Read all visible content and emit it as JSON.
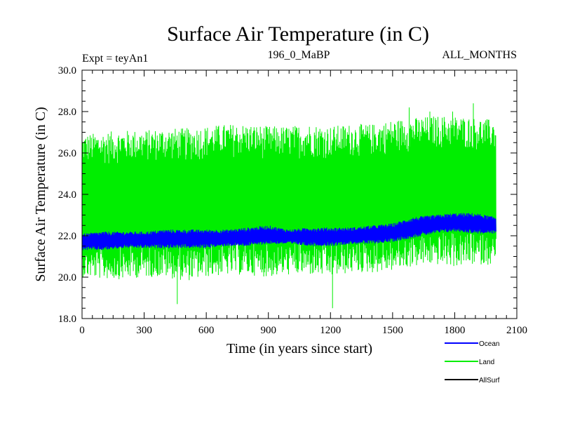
{
  "chart_data": {
    "type": "line",
    "title": "Surface Air Temperature (in C)",
    "subtitle_left": "Expt = teyAn1",
    "subtitle_center": "196_0_MaBP",
    "subtitle_right": "ALL_MONTHS",
    "xlabel": "Time (in years since start)",
    "ylabel": "Surface Air Temperature (in C)",
    "xlim": [
      0,
      2100
    ],
    "ylim": [
      18.0,
      30.0
    ],
    "xticks": [
      0,
      300,
      600,
      900,
      1200,
      1500,
      1800,
      2100
    ],
    "yticks": [
      18.0,
      20.0,
      22.0,
      24.0,
      26.0,
      28.0,
      30.0
    ],
    "xtick_labels": [
      "0",
      "300",
      "600",
      "900",
      "1200",
      "1500",
      "1800",
      "2100"
    ],
    "ytick_labels": [
      "18.0",
      "20.0",
      "22.0",
      "24.0",
      "26.0",
      "28.0",
      "30.0"
    ],
    "legend_position": "below-right",
    "series": [
      {
        "name": "Land",
        "color": "#00ee00",
        "x": [
          0,
          100,
          200,
          300,
          400,
          500,
          600,
          700,
          800,
          900,
          1000,
          1100,
          1200,
          1300,
          1400,
          1500,
          1600,
          1700,
          1800,
          1900,
          2000
        ],
        "upper": [
          26.9,
          27.0,
          27.1,
          27.1,
          27.2,
          27.2,
          27.3,
          27.4,
          27.4,
          27.3,
          27.3,
          27.4,
          27.3,
          27.4,
          27.4,
          27.6,
          27.7,
          27.8,
          27.8,
          27.7,
          27.6
        ],
        "lower": [
          20.0,
          19.9,
          19.9,
          20.0,
          20.0,
          19.8,
          20.0,
          20.1,
          20.1,
          20.0,
          20.1,
          20.1,
          20.0,
          20.2,
          20.2,
          20.3,
          20.5,
          20.6,
          20.5,
          20.6,
          20.6
        ],
        "spikes": [
          [
            1210,
            18.5
          ],
          [
            460,
            18.7
          ],
          [
            1890,
            28.4
          ],
          [
            1580,
            28.2
          ],
          [
            1680,
            28.0
          ],
          [
            1790,
            28.0
          ]
        ]
      },
      {
        "name": "Ocean",
        "color": "#0000ff",
        "x": [
          0,
          100,
          200,
          300,
          400,
          500,
          600,
          700,
          800,
          900,
          1000,
          1100,
          1200,
          1300,
          1400,
          1500,
          1600,
          1700,
          1800,
          1900,
          2000
        ],
        "upper": [
          22.1,
          22.2,
          22.2,
          22.2,
          22.3,
          22.3,
          22.3,
          22.3,
          22.4,
          22.5,
          22.3,
          22.4,
          22.4,
          22.4,
          22.5,
          22.6,
          22.9,
          23.0,
          23.1,
          23.1,
          22.9
        ],
        "lower": [
          21.3,
          21.3,
          21.4,
          21.4,
          21.4,
          21.4,
          21.4,
          21.5,
          21.5,
          21.6,
          21.6,
          21.5,
          21.5,
          21.6,
          21.6,
          21.7,
          21.9,
          22.1,
          22.2,
          22.1,
          22.1
        ]
      },
      {
        "name": "AllSurf",
        "color": "#000000",
        "x": [],
        "upper": [],
        "lower": []
      }
    ]
  }
}
